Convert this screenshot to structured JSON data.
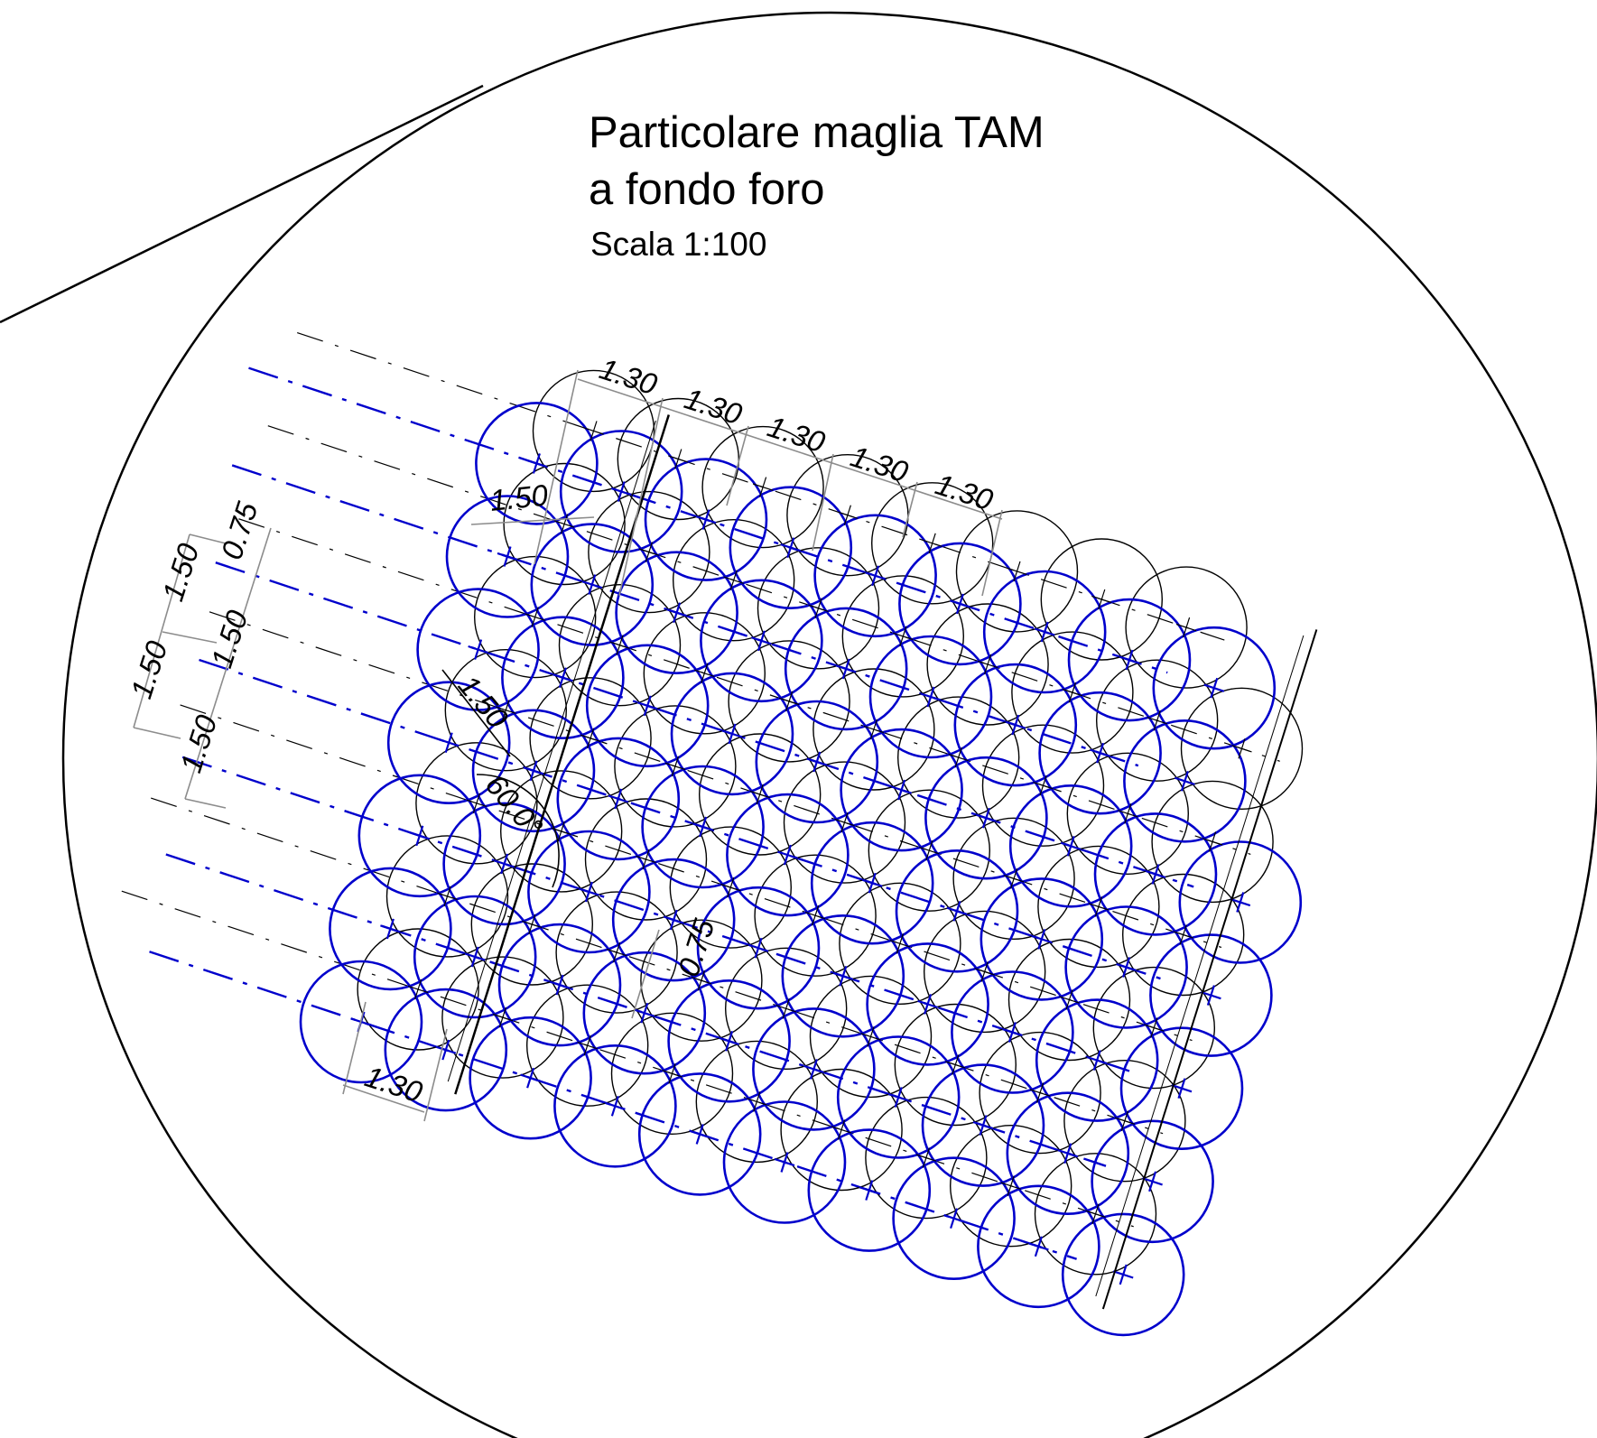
{
  "title": {
    "line1": "Particolare maglia TAM",
    "line2": "a fondo foro",
    "scale": "Scala 1:100"
  },
  "dimensions": {
    "top_spacing_1": "1.30",
    "top_spacing_2": "1.30",
    "top_spacing_3": "1.30",
    "top_spacing_4": "1.30",
    "top_spacing_5": "1.30",
    "bottom_spacing": "1.30",
    "diameter": "1.50",
    "offset_top": "0.75",
    "offset_mid": "0.75",
    "left_outer_1": "1.50",
    "left_outer_2": "1.50",
    "left_inner_1": "1.50",
    "left_inner_2": "1.50",
    "diagonal": "1.50",
    "angle": "60.0°"
  },
  "colors": {
    "primary_holes": "#0000cc",
    "secondary_holes": "#000000",
    "dimension_lines": "#8c8c8c",
    "background": "#ffffff"
  }
}
